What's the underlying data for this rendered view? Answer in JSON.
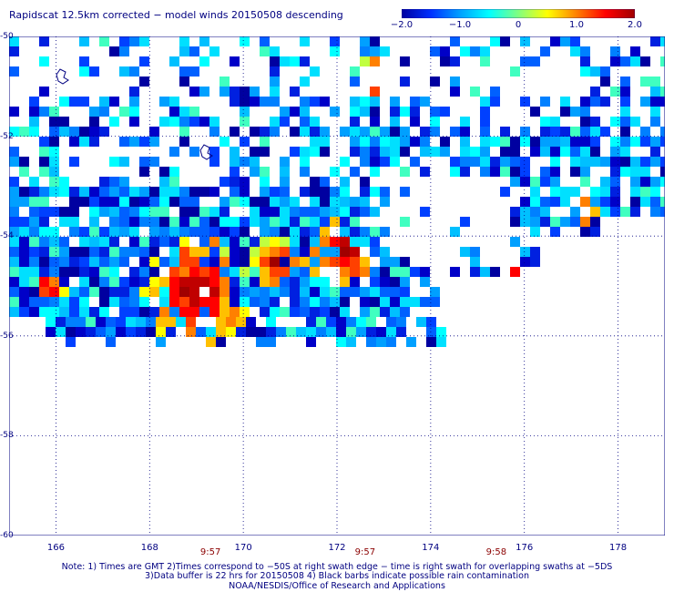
{
  "title": "Rapidscat 12.5km corrected − model winds 20150508 descending",
  "colorbar": {
    "ticks": [
      "−2.0",
      "−1.0",
      "0",
      "1.0",
      "2.0"
    ],
    "tick_values": [
      -2.0,
      -1.0,
      0,
      1.0,
      2.0
    ],
    "range": [
      -2.0,
      2.0
    ],
    "colors": [
      "#0000a0",
      "#0030ff",
      "#00a0ff",
      "#00ffff",
      "#80ff80",
      "#ffff00",
      "#ff8000",
      "#ff0000",
      "#a00000"
    ]
  },
  "map": {
    "lat_ticks": [
      "-50",
      "-52",
      "-54",
      "-56",
      "-58",
      "-60"
    ],
    "lat_values": [
      -50,
      -52,
      -54,
      -56,
      -58,
      -60
    ],
    "lon_ticks": [
      "166",
      "168",
      "170",
      "172",
      "174",
      "176",
      "178"
    ],
    "lon_values": [
      166,
      168,
      170,
      172,
      174,
      176,
      178
    ],
    "lon_range": [
      165.0,
      179.0
    ],
    "lat_range": [
      -50.0,
      -60.0
    ],
    "grid": "dotted",
    "time_labels": [
      {
        "text": "9:57",
        "lon": 169.3
      },
      {
        "text": "9:57",
        "lon": 172.6
      },
      {
        "text": "9:58",
        "lon": 175.4
      }
    ]
  },
  "notes": {
    "line1": "Note: 1) Times are GMT 2)Times correspond to −50S at right swath edge − time is right swath for overlapping swaths at −5DS",
    "line2": "3)Data buffer is 22 hrs for 20150508 4) Black barbs indicate possible rain contamination",
    "line3": "NOAA/NESDIS/Office of Research and Applications"
  }
}
